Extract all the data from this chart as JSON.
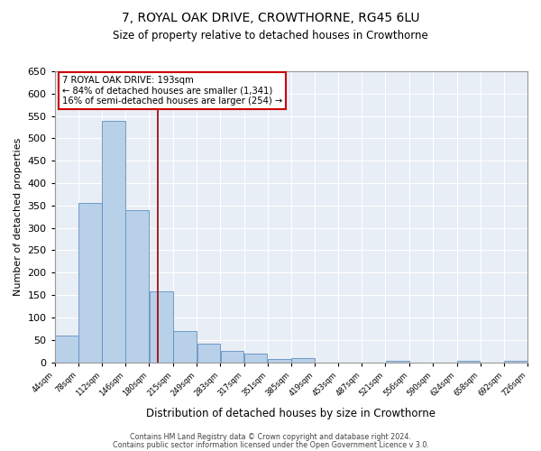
{
  "title": "7, ROYAL OAK DRIVE, CROWTHORNE, RG45 6LU",
  "subtitle": "Size of property relative to detached houses in Crowthorne",
  "xlabel": "Distribution of detached houses by size in Crowthorne",
  "ylabel": "Number of detached properties",
  "bar_left_edges": [
    44,
    78,
    112,
    146,
    180,
    215,
    249,
    283,
    317,
    351,
    385,
    419,
    453,
    487,
    521,
    556,
    590,
    624,
    658,
    692
  ],
  "bar_widths": [
    34,
    34,
    34,
    34,
    35,
    34,
    34,
    34,
    34,
    34,
    34,
    34,
    34,
    34,
    35,
    34,
    34,
    34,
    34,
    34
  ],
  "bar_heights": [
    60,
    356,
    540,
    339,
    158,
    69,
    41,
    25,
    20,
    8,
    10,
    0,
    0,
    0,
    3,
    0,
    0,
    3,
    0,
    3
  ],
  "tick_labels": [
    "44sqm",
    "78sqm",
    "112sqm",
    "146sqm",
    "180sqm",
    "215sqm",
    "249sqm",
    "283sqm",
    "317sqm",
    "351sqm",
    "385sqm",
    "419sqm",
    "453sqm",
    "487sqm",
    "521sqm",
    "556sqm",
    "590sqm",
    "624sqm",
    "658sqm",
    "692sqm",
    "726sqm"
  ],
  "bar_color": "#b8d0e8",
  "bar_edge_color": "#6090c0",
  "vline_x": 193,
  "vline_color": "#990000",
  "annotation_text": "7 ROYAL OAK DRIVE: 193sqm\n← 84% of detached houses are smaller (1,341)\n16% of semi-detached houses are larger (254) →",
  "annotation_box_color": "#ffffff",
  "annotation_box_edge": "#cc0000",
  "ylim": [
    0,
    650
  ],
  "yticks": [
    0,
    50,
    100,
    150,
    200,
    250,
    300,
    350,
    400,
    450,
    500,
    550,
    600,
    650
  ],
  "footer_line1": "Contains HM Land Registry data © Crown copyright and database right 2024.",
  "footer_line2": "Contains public sector information licensed under the Open Government Licence v 3.0.",
  "fig_bg_color": "#ffffff",
  "plot_bg_color": "#e8eef5"
}
